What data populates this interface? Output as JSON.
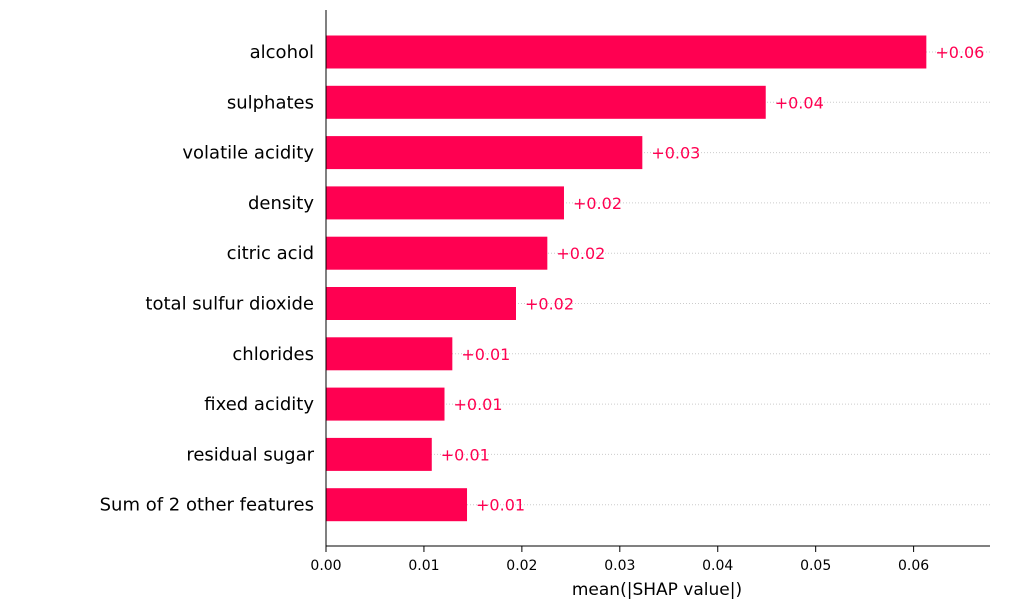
{
  "chart_data": {
    "type": "bar",
    "orientation": "horizontal",
    "title": "",
    "xlabel": "mean(|SHAP value|)",
    "ylabel": "",
    "categories": [
      "alcohol",
      "sulphates",
      "volatile acidity",
      "density",
      "citric acid",
      "total sulfur dioxide",
      "chlorides",
      "fixed acidity",
      "residual sugar",
      "Sum of 2 other features"
    ],
    "values": [
      0.0613,
      0.0449,
      0.0323,
      0.0243,
      0.0226,
      0.0194,
      0.0129,
      0.0121,
      0.0108,
      0.0144
    ],
    "value_labels": [
      "+0.06",
      "+0.04",
      "+0.03",
      "+0.02",
      "+0.02",
      "+0.02",
      "+0.01",
      "+0.01",
      "+0.01",
      "+0.01"
    ],
    "xlim": [
      0,
      0.0678
    ],
    "xticks": [
      0.0,
      0.01,
      0.02,
      0.03,
      0.04,
      0.05,
      0.06
    ],
    "xtick_labels": [
      "0.00",
      "0.01",
      "0.02",
      "0.03",
      "0.04",
      "0.05",
      "0.06"
    ],
    "bar_color": "#ff0051",
    "grid": "dotted horizontal guide lines per row",
    "legend": "none"
  }
}
